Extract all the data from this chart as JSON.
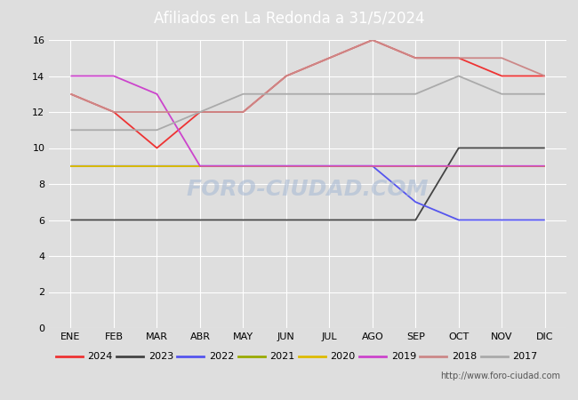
{
  "title": "Afiliados en La Redonda a 31/5/2024",
  "header_bg": "#5b8dd9",
  "xlabel": "",
  "ylabel": "",
  "ylim": [
    0,
    16
  ],
  "yticks": [
    0,
    2,
    4,
    6,
    8,
    10,
    12,
    14,
    16
  ],
  "months": [
    "ENE",
    "FEB",
    "MAR",
    "ABR",
    "MAY",
    "JUN",
    "JUL",
    "AGO",
    "SEP",
    "OCT",
    "NOV",
    "DIC"
  ],
  "watermark": "FORO-CIUDAD.COM",
  "url": "http://www.foro-ciudad.com",
  "series": {
    "2024": {
      "data": [
        13,
        12,
        10,
        12,
        12,
        14,
        15,
        16,
        15,
        15,
        14,
        14
      ],
      "color": "#ee3333",
      "linewidth": 1.3
    },
    "2023": {
      "data": [
        6,
        6,
        6,
        6,
        6,
        6,
        6,
        6,
        6,
        10,
        10,
        10
      ],
      "color": "#444444",
      "linewidth": 1.3
    },
    "2022": {
      "data": [
        9,
        9,
        9,
        9,
        9,
        9,
        9,
        9,
        7,
        6,
        6,
        6
      ],
      "color": "#5555ee",
      "linewidth": 1.3
    },
    "2021": {
      "data": [
        9,
        9,
        9,
        9,
        9,
        9,
        9,
        9,
        9,
        9,
        9,
        9
      ],
      "color": "#99aa00",
      "linewidth": 1.3
    },
    "2020": {
      "data": [
        9,
        9,
        9,
        9,
        9,
        9,
        9,
        9,
        9,
        9,
        9,
        9
      ],
      "color": "#ddbb00",
      "linewidth": 1.3
    },
    "2019": {
      "data": [
        14,
        14,
        13,
        9,
        9,
        9,
        9,
        9,
        9,
        9,
        9,
        9
      ],
      "color": "#cc44cc",
      "linewidth": 1.3
    },
    "2018": {
      "data": [
        13,
        12,
        12,
        12,
        12,
        14,
        15,
        16,
        15,
        15,
        15,
        14
      ],
      "color": "#cc8888",
      "linewidth": 1.3
    },
    "2017": {
      "data": [
        11,
        11,
        11,
        12,
        13,
        13,
        13,
        13,
        13,
        14,
        13,
        13
      ],
      "color": "#aaaaaa",
      "linewidth": 1.3
    }
  },
  "legend_order": [
    "2024",
    "2023",
    "2022",
    "2021",
    "2020",
    "2019",
    "2018",
    "2017"
  ],
  "plot_bg": "#dedede",
  "grid_color": "#ffffff",
  "footer_bg": "#5b8dd9"
}
